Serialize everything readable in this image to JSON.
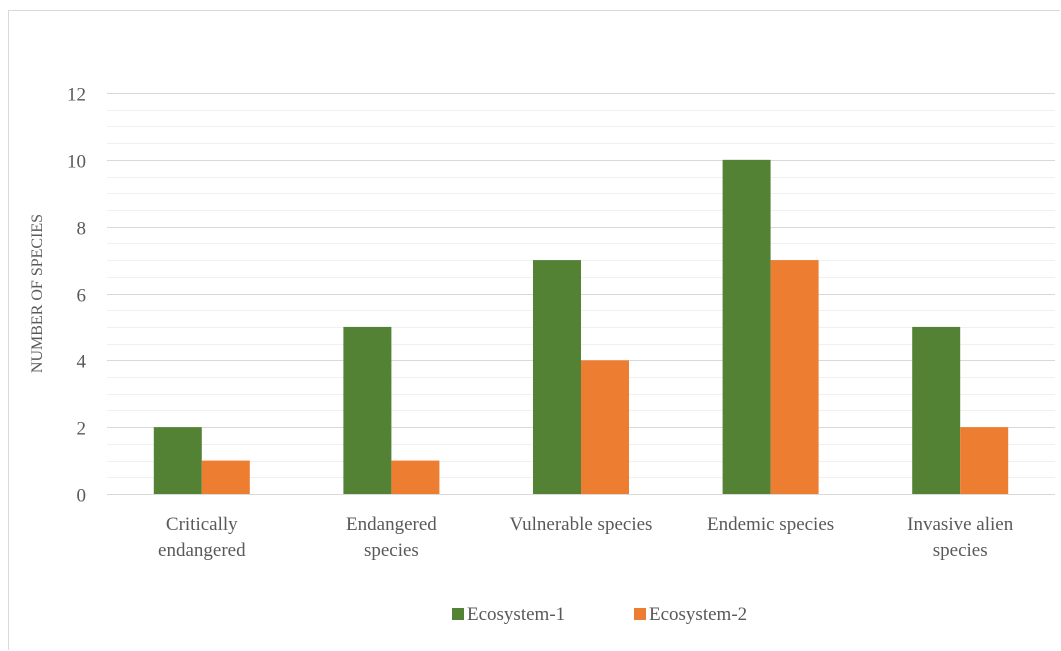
{
  "chart_data": {
    "type": "bar",
    "title": "",
    "xlabel": "",
    "ylabel": "NUMBER OF SPECIES",
    "ylim": [
      0,
      12
    ],
    "yticks": [
      0,
      2,
      4,
      6,
      8,
      10,
      12
    ],
    "minor_grid": true,
    "legend_position": "bottom",
    "categories": [
      [
        "Critically",
        "endangered"
      ],
      [
        "Endangered",
        "species"
      ],
      [
        "Vulnerable species"
      ],
      [
        "Endemic species"
      ],
      [
        "Invasive alien",
        "species"
      ]
    ],
    "series": [
      {
        "name": "Ecosystem-1",
        "color": "#548235",
        "values": [
          2,
          5,
          7,
          10,
          5
        ]
      },
      {
        "name": "Ecosystem-2",
        "color": "#ed7d31",
        "values": [
          1,
          1,
          4,
          7,
          2
        ]
      }
    ]
  }
}
